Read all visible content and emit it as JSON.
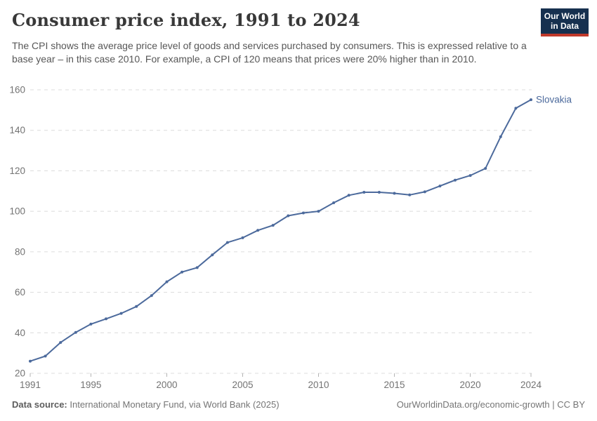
{
  "header": {
    "title": "Consumer price index, 1991 to 2024",
    "subtitle": "The CPI shows the average price level of goods and services purchased by consumers. This is expressed relative to a base year – in this case 2010. For example, a CPI of 120 means that prices were 20% higher than in 2010.",
    "logo": {
      "line1": "Our World",
      "line2": "in Data"
    }
  },
  "colors": {
    "series_blue": "#4C6A9C",
    "grid": "#dcdcdc",
    "axis_tick": "#b3b3b3",
    "axis_text": "#737373",
    "logo_navy": "#16304f",
    "logo_red": "#c0392b"
  },
  "chart_data": {
    "type": "line",
    "title": "Consumer price index, 1991 to 2024",
    "xlabel": "",
    "ylabel": "",
    "xlim": [
      1991,
      2024
    ],
    "ylim": [
      20,
      160
    ],
    "x_ticks": [
      1991,
      1995,
      2000,
      2005,
      2010,
      2015,
      2020,
      2024
    ],
    "y_ticks": [
      20,
      40,
      60,
      80,
      100,
      120,
      140,
      160
    ],
    "grid": true,
    "legend_position": "end-of-line-label",
    "series": [
      {
        "name": "Slovakia",
        "color": "#4C6A9C",
        "x": [
          1991,
          1992,
          1993,
          1994,
          1995,
          1996,
          1997,
          1998,
          1999,
          2000,
          2001,
          2002,
          2003,
          2004,
          2005,
          2006,
          2007,
          2008,
          2009,
          2010,
          2011,
          2012,
          2013,
          2014,
          2015,
          2016,
          2017,
          2018,
          2019,
          2020,
          2021,
          2022,
          2023,
          2024
        ],
        "values": [
          26.0,
          28.5,
          35.2,
          40.2,
          44.3,
          46.9,
          49.6,
          53.0,
          58.4,
          65.2,
          70.0,
          72.2,
          78.5,
          84.6,
          86.9,
          90.6,
          93.1,
          97.8,
          99.2,
          100.0,
          104.2,
          107.9,
          109.4,
          109.4,
          108.9,
          108.1,
          109.6,
          112.5,
          115.4,
          117.7,
          121.2,
          136.8,
          150.9,
          155.1
        ]
      }
    ]
  },
  "footer": {
    "datasource_label": "Data source:",
    "datasource_text": " International Monetary Fund, via World Bank (2025)",
    "link_text": "OurWorldinData.org/economic-growth | CC BY"
  }
}
